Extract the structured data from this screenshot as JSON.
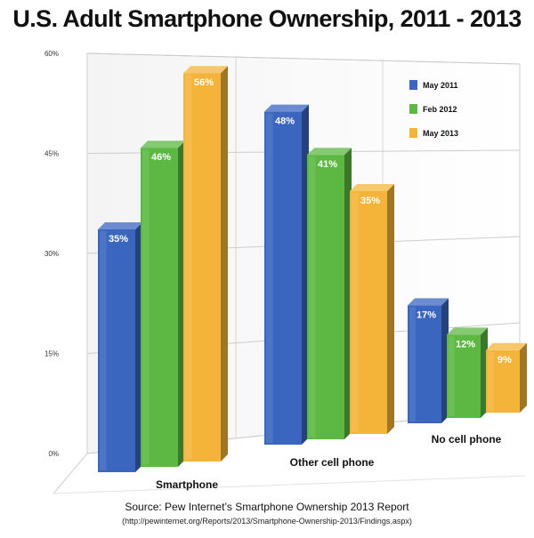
{
  "chart_data": {
    "type": "bar",
    "title": "U.S. Adult Smartphone Ownership, 2011 - 2013",
    "categories": [
      "Smartphone",
      "Other cell phone",
      "No cell phone"
    ],
    "series": [
      {
        "name": "May 2011",
        "values": [
          35,
          48,
          17
        ],
        "labels": [
          "35%",
          "48%",
          "17%"
        ],
        "color": "#3a66c0"
      },
      {
        "name": "Feb 2012",
        "values": [
          46,
          41,
          12
        ],
        "labels": [
          "46%",
          "41%",
          "12%"
        ],
        "color": "#5cb843"
      },
      {
        "name": "May 2013",
        "values": [
          56,
          35,
          9
        ],
        "labels": [
          "56%",
          "35%",
          "9%"
        ],
        "color": "#f4b43a"
      }
    ],
    "yticks": [
      {
        "value": 0,
        "label": "0%"
      },
      {
        "value": 15,
        "label": "15%"
      },
      {
        "value": 30,
        "label": "30%"
      },
      {
        "value": 45,
        "label": "45%"
      },
      {
        "value": 60,
        "label": "60%"
      }
    ],
    "ylim": [
      0,
      60
    ],
    "grid": true,
    "legend_position": "top-right",
    "xlabel": "",
    "ylabel": ""
  },
  "source": {
    "line1": "Source: Pew Internet’s Smartphone Ownership 2013 Report",
    "line2": "(http://pewinternet.org/Reports/2013/Smartphone-Ownership-2013/Findings.aspx)"
  }
}
